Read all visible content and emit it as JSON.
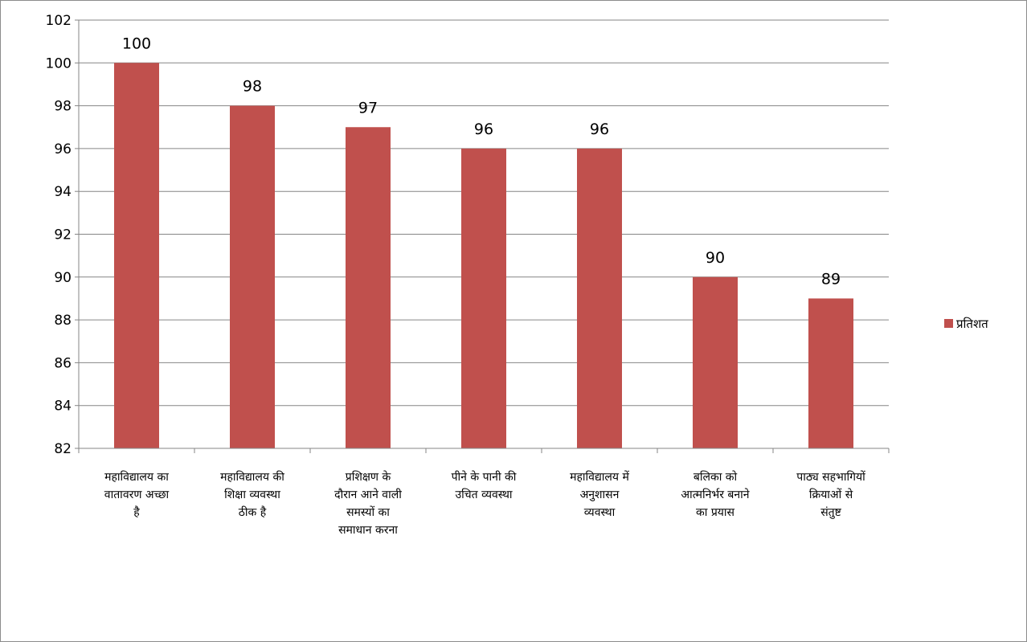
{
  "chart_data": {
    "type": "bar",
    "categories": [
      "महाविद्यालय का वातावरण अच्छा है",
      "महाविद्यालय की शिक्षा व्यवस्था ठीक है",
      "प्रशिक्षण के दौरान आने वाली समस्यों का समाधान करना",
      "पीने के पानी की उचित व्यवस्था",
      "महाविद्यालय में अनुशासन व्यवस्था",
      "बलिका को आत्मनिर्भर बनाने का प्रयास",
      "पाठ्य सहभागियों क्रियाओं से संतुष्ट"
    ],
    "category_lines": [
      [
        "महाविद्यालय का",
        "वातावरण अच्छा",
        "है"
      ],
      [
        "महाविद्यालय की",
        "शिक्षा व्यवस्था",
        "ठीक है"
      ],
      [
        "प्रशिक्षण के",
        "दौरान आने वाली",
        "समस्यों का",
        "समाधान करना"
      ],
      [
        "पीने के पानी की",
        "उचित व्यवस्था"
      ],
      [
        "महाविद्यालय में",
        "अनुशासन",
        "व्यवस्था"
      ],
      [
        "बलिका को",
        "आत्मनिर्भर बनाने",
        "का प्रयास"
      ],
      [
        "पाठ्य सहभागियों",
        "क्रियाओं से",
        "संतुष्ट"
      ]
    ],
    "series": [
      {
        "name": "प्रतिशत",
        "values": [
          100,
          98,
          97,
          96,
          96,
          90,
          89
        ],
        "color": "#c0504d"
      }
    ],
    "data_labels": [
      "100",
      "98",
      "97",
      "96",
      "96",
      "90",
      "89"
    ],
    "yticks": [
      "82",
      "84",
      "86",
      "88",
      "90",
      "92",
      "94",
      "96",
      "98",
      "100",
      "102"
    ],
    "ylim": [
      82,
      102
    ],
    "grid": true,
    "legend_position": "right",
    "gridline_color": "#868686",
    "axis_color": "#868686"
  }
}
